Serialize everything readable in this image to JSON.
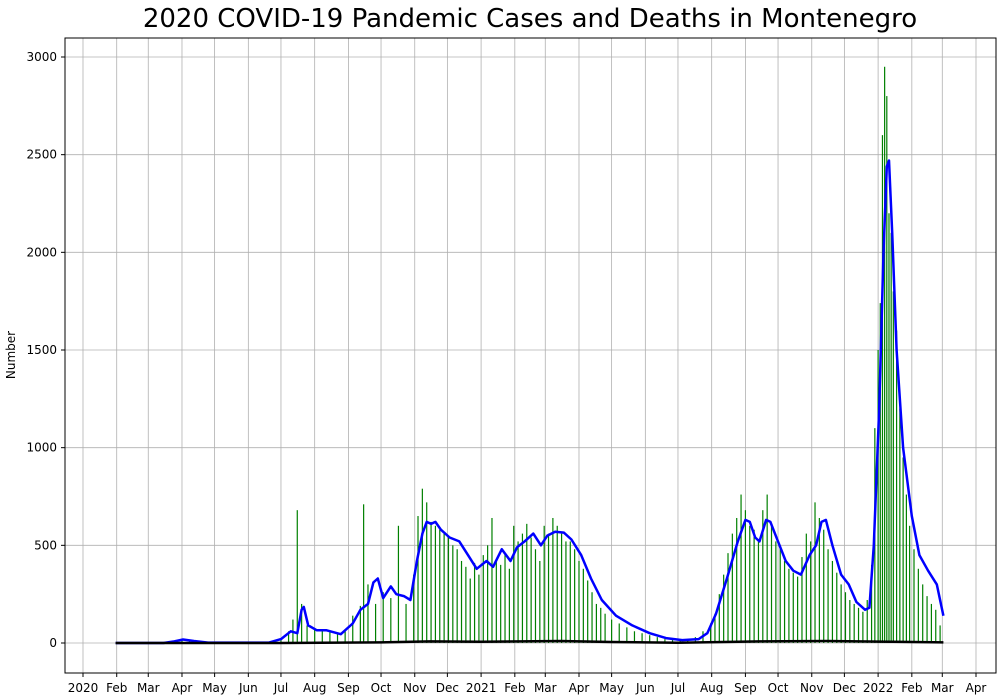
{
  "chart_data": {
    "type": "bar",
    "title": "2020 COVID-19 Pandemic Cases and Deaths in Montenegro",
    "xlabel": "",
    "ylabel": "Number",
    "ylim": [
      0,
      3000
    ],
    "grid": true,
    "y_ticks": [
      0,
      500,
      1000,
      1500,
      2000,
      2500,
      3000
    ],
    "x_ticks": [
      {
        "date": "2020-01-01",
        "label": "2020"
      },
      {
        "date": "2020-02-01",
        "label": "Feb"
      },
      {
        "date": "2020-03-01",
        "label": "Mar"
      },
      {
        "date": "2020-04-01",
        "label": "Apr"
      },
      {
        "date": "2020-05-01",
        "label": "May"
      },
      {
        "date": "2020-06-01",
        "label": "Jun"
      },
      {
        "date": "2020-07-01",
        "label": "Jul"
      },
      {
        "date": "2020-08-01",
        "label": "Aug"
      },
      {
        "date": "2020-09-01",
        "label": "Sep"
      },
      {
        "date": "2020-10-01",
        "label": "Oct"
      },
      {
        "date": "2020-11-01",
        "label": "Nov"
      },
      {
        "date": "2020-12-01",
        "label": "Dec"
      },
      {
        "date": "2021-01-01",
        "label": "2021"
      },
      {
        "date": "2021-02-01",
        "label": "Feb"
      },
      {
        "date": "2021-03-01",
        "label": "Mar"
      },
      {
        "date": "2021-04-01",
        "label": "Apr"
      },
      {
        "date": "2021-05-01",
        "label": "May"
      },
      {
        "date": "2021-06-01",
        "label": "Jun"
      },
      {
        "date": "2021-07-01",
        "label": "Jul"
      },
      {
        "date": "2021-08-01",
        "label": "Aug"
      },
      {
        "date": "2021-09-01",
        "label": "Sep"
      },
      {
        "date": "2021-10-01",
        "label": "Oct"
      },
      {
        "date": "2021-11-01",
        "label": "Nov"
      },
      {
        "date": "2021-12-01",
        "label": "Dec"
      },
      {
        "date": "2022-01-01",
        "label": "2022"
      },
      {
        "date": "2022-02-01",
        "label": "Feb"
      },
      {
        "date": "2022-03-01",
        "label": "Mar"
      },
      {
        "date": "2022-04-01",
        "label": "Apr"
      }
    ],
    "xlim": [
      "2019-12-01",
      "2022-04-20"
    ],
    "series": [
      {
        "kind": "bar",
        "color": "#008000",
        "points": [
          [
            "2020-03-17",
            5
          ],
          [
            "2020-03-25",
            12
          ],
          [
            "2020-04-01",
            18
          ],
          [
            "2020-04-08",
            15
          ],
          [
            "2020-04-15",
            8
          ],
          [
            "2020-04-25",
            3
          ],
          [
            "2020-05-10",
            1
          ],
          [
            "2020-06-15",
            2
          ],
          [
            "2020-06-25",
            10
          ],
          [
            "2020-07-01",
            25
          ],
          [
            "2020-07-08",
            60
          ],
          [
            "2020-07-12",
            120
          ],
          [
            "2020-07-16",
            680
          ],
          [
            "2020-07-20",
            200
          ],
          [
            "2020-07-25",
            90
          ],
          [
            "2020-08-01",
            70
          ],
          [
            "2020-08-08",
            60
          ],
          [
            "2020-08-15",
            55
          ],
          [
            "2020-08-22",
            45
          ],
          [
            "2020-08-29",
            70
          ],
          [
            "2020-09-05",
            140
          ],
          [
            "2020-09-12",
            190
          ],
          [
            "2020-09-15",
            710
          ],
          [
            "2020-09-19",
            300
          ],
          [
            "2020-09-26",
            200
          ],
          [
            "2020-10-03",
            260
          ],
          [
            "2020-10-10",
            230
          ],
          [
            "2020-10-17",
            600
          ],
          [
            "2020-10-24",
            200
          ],
          [
            "2020-10-31",
            350
          ],
          [
            "2020-11-04",
            650
          ],
          [
            "2020-11-08",
            790
          ],
          [
            "2020-11-12",
            720
          ],
          [
            "2020-11-16",
            620
          ],
          [
            "2020-11-20",
            600
          ],
          [
            "2020-11-24",
            580
          ],
          [
            "2020-11-28",
            560
          ],
          [
            "2020-12-02",
            540
          ],
          [
            "2020-12-06",
            500
          ],
          [
            "2020-12-10",
            480
          ],
          [
            "2020-12-14",
            420
          ],
          [
            "2020-12-18",
            390
          ],
          [
            "2020-12-22",
            330
          ],
          [
            "2020-12-26",
            410
          ],
          [
            "2020-12-30",
            350
          ],
          [
            "2021-01-03",
            450
          ],
          [
            "2021-01-07",
            500
          ],
          [
            "2021-01-11",
            640
          ],
          [
            "2021-01-15",
            430
          ],
          [
            "2021-01-19",
            400
          ],
          [
            "2021-01-23",
            460
          ],
          [
            "2021-01-27",
            380
          ],
          [
            "2021-01-31",
            600
          ],
          [
            "2021-02-04",
            520
          ],
          [
            "2021-02-08",
            560
          ],
          [
            "2021-02-12",
            610
          ],
          [
            "2021-02-16",
            540
          ],
          [
            "2021-02-20",
            480
          ],
          [
            "2021-02-24",
            420
          ],
          [
            "2021-02-28",
            600
          ],
          [
            "2021-03-04",
            560
          ],
          [
            "2021-03-08",
            640
          ],
          [
            "2021-03-12",
            600
          ],
          [
            "2021-03-16",
            560
          ],
          [
            "2021-03-20",
            520
          ],
          [
            "2021-03-24",
            520
          ],
          [
            "2021-03-28",
            480
          ],
          [
            "2021-04-01",
            420
          ],
          [
            "2021-04-05",
            380
          ],
          [
            "2021-04-09",
            320
          ],
          [
            "2021-04-13",
            260
          ],
          [
            "2021-04-17",
            200
          ],
          [
            "2021-04-21",
            180
          ],
          [
            "2021-04-25",
            150
          ],
          [
            "2021-05-01",
            120
          ],
          [
            "2021-05-08",
            100
          ],
          [
            "2021-05-15",
            80
          ],
          [
            "2021-05-22",
            60
          ],
          [
            "2021-05-29",
            50
          ],
          [
            "2021-06-05",
            40
          ],
          [
            "2021-06-12",
            30
          ],
          [
            "2021-06-19",
            20
          ],
          [
            "2021-06-26",
            15
          ],
          [
            "2021-07-03",
            12
          ],
          [
            "2021-07-10",
            15
          ],
          [
            "2021-07-17",
            30
          ],
          [
            "2021-07-24",
            60
          ],
          [
            "2021-07-31",
            100
          ],
          [
            "2021-08-04",
            150
          ],
          [
            "2021-08-08",
            250
          ],
          [
            "2021-08-12",
            350
          ],
          [
            "2021-08-16",
            460
          ],
          [
            "2021-08-20",
            560
          ],
          [
            "2021-08-24",
            640
          ],
          [
            "2021-08-28",
            760
          ],
          [
            "2021-09-01",
            680
          ],
          [
            "2021-09-05",
            600
          ],
          [
            "2021-09-09",
            580
          ],
          [
            "2021-09-13",
            520
          ],
          [
            "2021-09-17",
            680
          ],
          [
            "2021-09-21",
            760
          ],
          [
            "2021-09-25",
            600
          ],
          [
            "2021-09-29",
            520
          ],
          [
            "2021-10-03",
            480
          ],
          [
            "2021-10-07",
            420
          ],
          [
            "2021-10-11",
            380
          ],
          [
            "2021-10-15",
            360
          ],
          [
            "2021-10-19",
            340
          ],
          [
            "2021-10-23",
            440
          ],
          [
            "2021-10-27",
            560
          ],
          [
            "2021-10-31",
            520
          ],
          [
            "2021-11-04",
            720
          ],
          [
            "2021-11-08",
            640
          ],
          [
            "2021-11-12",
            580
          ],
          [
            "2021-11-16",
            480
          ],
          [
            "2021-11-20",
            420
          ],
          [
            "2021-11-24",
            360
          ],
          [
            "2021-11-28",
            300
          ],
          [
            "2021-12-02",
            260
          ],
          [
            "2021-12-06",
            220
          ],
          [
            "2021-12-10",
            200
          ],
          [
            "2021-12-14",
            180
          ],
          [
            "2021-12-18",
            160
          ],
          [
            "2021-12-22",
            220
          ],
          [
            "2021-12-26",
            400
          ],
          [
            "2021-12-29",
            1100
          ],
          [
            "2022-01-01",
            1500
          ],
          [
            "2022-01-03",
            1740
          ],
          [
            "2022-01-05",
            2600
          ],
          [
            "2022-01-07",
            2950
          ],
          [
            "2022-01-09",
            2800
          ],
          [
            "2022-01-11",
            2200
          ],
          [
            "2022-01-13",
            2100
          ],
          [
            "2022-01-15",
            1800
          ],
          [
            "2022-01-18",
            1600
          ],
          [
            "2022-01-21",
            1200
          ],
          [
            "2022-01-24",
            950
          ],
          [
            "2022-01-27",
            760
          ],
          [
            "2022-01-30",
            600
          ],
          [
            "2022-02-03",
            480
          ],
          [
            "2022-02-07",
            380
          ],
          [
            "2022-02-11",
            300
          ],
          [
            "2022-02-15",
            240
          ],
          [
            "2022-02-19",
            200
          ],
          [
            "2022-02-23",
            170
          ],
          [
            "2022-02-27",
            90
          ]
        ]
      },
      {
        "kind": "line",
        "color": "#0000ff",
        "points": [
          [
            "2020-01-31",
            0
          ],
          [
            "2020-03-15",
            0
          ],
          [
            "2020-03-25",
            8
          ],
          [
            "2020-04-02",
            18
          ],
          [
            "2020-04-12",
            10
          ],
          [
            "2020-04-25",
            2
          ],
          [
            "2020-06-20",
            2
          ],
          [
            "2020-07-01",
            20
          ],
          [
            "2020-07-10",
            60
          ],
          [
            "2020-07-16",
            50
          ],
          [
            "2020-07-20",
            170
          ],
          [
            "2020-07-22",
            185
          ],
          [
            "2020-07-26",
            90
          ],
          [
            "2020-08-03",
            65
          ],
          [
            "2020-08-12",
            65
          ],
          [
            "2020-08-25",
            45
          ],
          [
            "2020-09-05",
            100
          ],
          [
            "2020-09-12",
            170
          ],
          [
            "2020-09-19",
            200
          ],
          [
            "2020-09-24",
            310
          ],
          [
            "2020-09-28",
            330
          ],
          [
            "2020-10-03",
            230
          ],
          [
            "2020-10-10",
            290
          ],
          [
            "2020-10-15",
            250
          ],
          [
            "2020-10-22",
            240
          ],
          [
            "2020-10-28",
            220
          ],
          [
            "2020-11-03",
            420
          ],
          [
            "2020-11-08",
            560
          ],
          [
            "2020-11-12",
            620
          ],
          [
            "2020-11-16",
            610
          ],
          [
            "2020-11-20",
            620
          ],
          [
            "2020-11-25",
            580
          ],
          [
            "2020-12-03",
            540
          ],
          [
            "2020-12-12",
            520
          ],
          [
            "2020-12-20",
            450
          ],
          [
            "2020-12-28",
            380
          ],
          [
            "2021-01-06",
            420
          ],
          [
            "2021-01-12",
            390
          ],
          [
            "2021-01-20",
            480
          ],
          [
            "2021-01-28",
            420
          ],
          [
            "2021-02-03",
            490
          ],
          [
            "2021-02-10",
            520
          ],
          [
            "2021-02-18",
            560
          ],
          [
            "2021-02-25",
            500
          ],
          [
            "2021-03-03",
            550
          ],
          [
            "2021-03-10",
            570
          ],
          [
            "2021-03-18",
            565
          ],
          [
            "2021-03-25",
            530
          ],
          [
            "2021-04-03",
            450
          ],
          [
            "2021-04-12",
            330
          ],
          [
            "2021-04-22",
            220
          ],
          [
            "2021-05-05",
            140
          ],
          [
            "2021-05-20",
            90
          ],
          [
            "2021-06-05",
            50
          ],
          [
            "2021-06-20",
            25
          ],
          [
            "2021-07-05",
            15
          ],
          [
            "2021-07-20",
            20
          ],
          [
            "2021-07-28",
            50
          ],
          [
            "2021-08-05",
            150
          ],
          [
            "2021-08-15",
            330
          ],
          [
            "2021-08-25",
            520
          ],
          [
            "2021-09-01",
            630
          ],
          [
            "2021-09-05",
            620
          ],
          [
            "2021-09-10",
            540
          ],
          [
            "2021-09-14",
            520
          ],
          [
            "2021-09-20",
            630
          ],
          [
            "2021-09-24",
            620
          ],
          [
            "2021-10-01",
            520
          ],
          [
            "2021-10-08",
            420
          ],
          [
            "2021-10-15",
            370
          ],
          [
            "2021-10-22",
            350
          ],
          [
            "2021-10-30",
            450
          ],
          [
            "2021-11-05",
            500
          ],
          [
            "2021-11-10",
            620
          ],
          [
            "2021-11-14",
            630
          ],
          [
            "2021-11-20",
            500
          ],
          [
            "2021-11-28",
            350
          ],
          [
            "2021-12-05",
            300
          ],
          [
            "2021-12-12",
            210
          ],
          [
            "2021-12-20",
            170
          ],
          [
            "2021-12-24",
            180
          ],
          [
            "2021-12-28",
            500
          ],
          [
            "2022-01-02",
            1200
          ],
          [
            "2022-01-06",
            2000
          ],
          [
            "2022-01-09",
            2440
          ],
          [
            "2022-01-11",
            2470
          ],
          [
            "2022-01-14",
            2100
          ],
          [
            "2022-01-18",
            1500
          ],
          [
            "2022-01-24",
            1000
          ],
          [
            "2022-02-01",
            650
          ],
          [
            "2022-02-08",
            450
          ],
          [
            "2022-02-16",
            370
          ],
          [
            "2022-02-24",
            300
          ],
          [
            "2022-03-02",
            140
          ]
        ]
      },
      {
        "kind": "line",
        "color": "#000000",
        "points": [
          [
            "2020-01-31",
            0
          ],
          [
            "2020-07-01",
            0
          ],
          [
            "2020-10-01",
            3
          ],
          [
            "2020-11-15",
            8
          ],
          [
            "2021-01-01",
            6
          ],
          [
            "2021-03-15",
            10
          ],
          [
            "2021-05-01",
            5
          ],
          [
            "2021-07-01",
            1
          ],
          [
            "2021-09-15",
            8
          ],
          [
            "2021-11-15",
            10
          ],
          [
            "2022-01-15",
            6
          ],
          [
            "2022-03-02",
            3
          ]
        ]
      }
    ]
  }
}
